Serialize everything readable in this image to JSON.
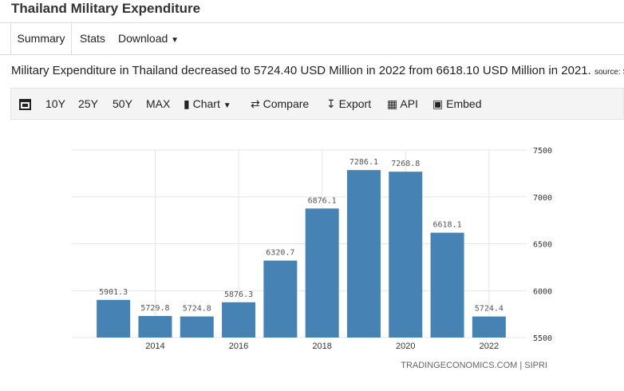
{
  "header": {
    "title": "Thailand Military Expenditure"
  },
  "tabs": [
    "Summary",
    "Stats",
    "Download"
  ],
  "description": {
    "text": "Military Expenditure in Thailand decreased to 5724.40 USD Million in 2022 from 6618.10 USD Million in 2021.",
    "source": "source: SIPRI"
  },
  "toolbar": [
    "10Y",
    "25Y",
    "50Y",
    "MAX",
    "Chart",
    "Compare",
    "Export",
    "API",
    "Embed"
  ],
  "chart_data": {
    "type": "bar",
    "categories": [
      null,
      "2014",
      null,
      "2016",
      null,
      "2018",
      null,
      "2020",
      null,
      "2022"
    ],
    "values": [
      5901.3,
      5729.8,
      5724.8,
      5876.3,
      6320.7,
      6876.1,
      7286.1,
      7268.8,
      6618.1,
      5724.4
    ],
    "color": "#4682b4",
    "ylim": [
      5500,
      7500
    ],
    "yticks": [
      5500,
      6000,
      6500,
      7000,
      7500
    ],
    "grid": true,
    "source": "TRADINGECONOMICS.COM | SIPRI"
  }
}
